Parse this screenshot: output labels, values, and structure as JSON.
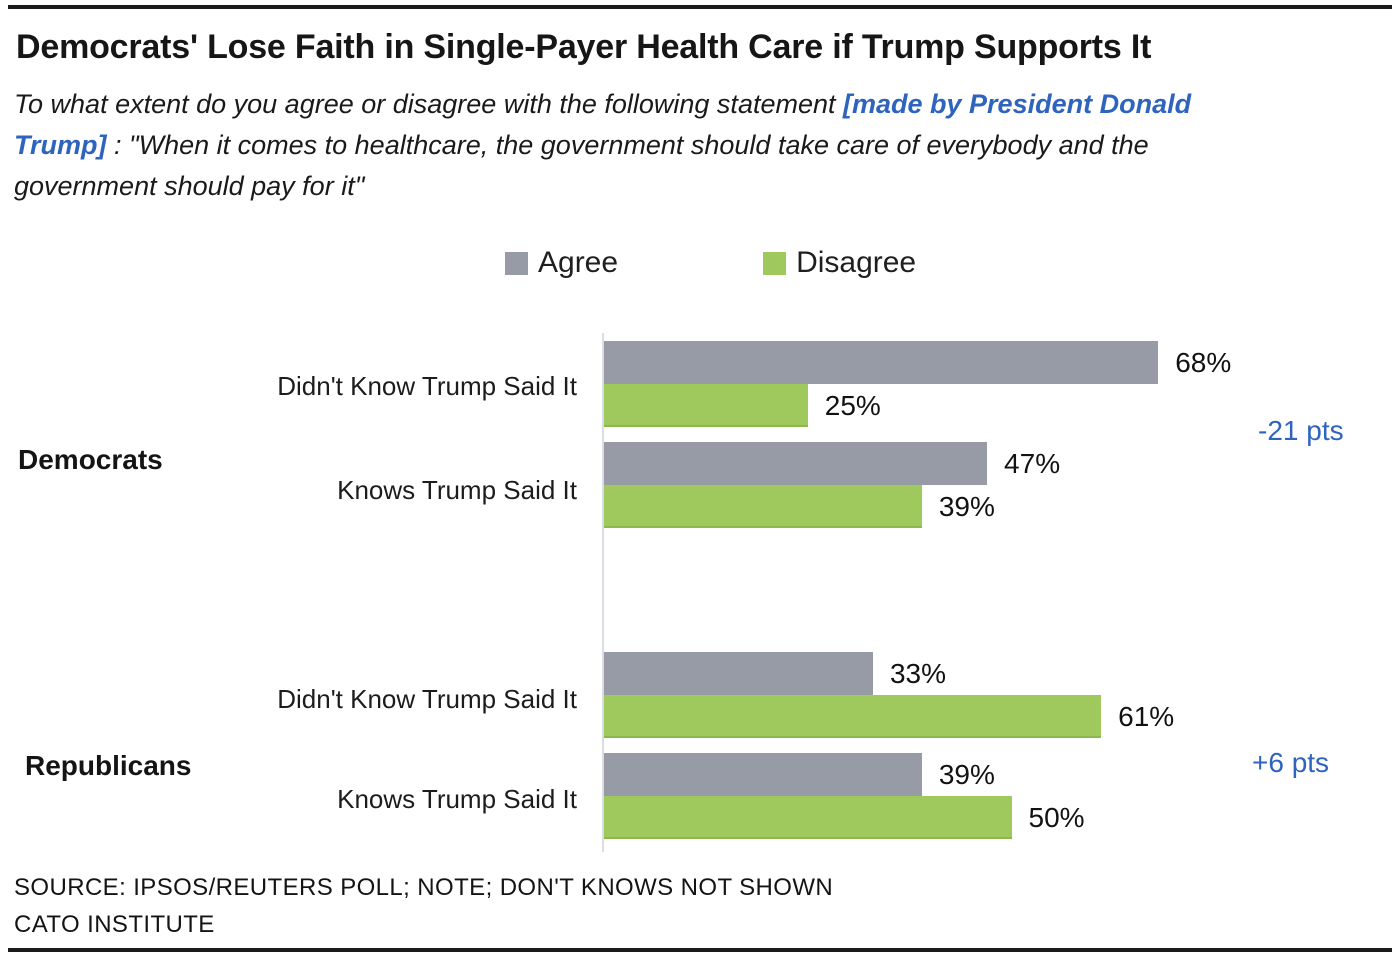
{
  "colors": {
    "agree": "#969BA6",
    "disagree": "#9FC95C",
    "disagree_border": "#8DB84E",
    "accent_blue": "#2E63BE",
    "axis": "#DADDE3",
    "rule": "#1B1B1B"
  },
  "chart_data": {
    "type": "bar",
    "orientation": "horizontal",
    "title": "Democrats' Lose Faith in Single-Payer Health Care if Trump Supports It",
    "subtitle": {
      "line1_black": "To what extent do you agree or disagree with the following statement ",
      "line1_blue": "[made by President Donald",
      "line2_blue": "Trump]",
      "line2_black": " : \"When it comes to healthcare, the government should take care of everybody and the",
      "line3_black": "government should pay for it\""
    },
    "value_suffix": "%",
    "xlim": [
      0,
      100
    ],
    "grid": false,
    "legend_position": "top-center",
    "legend": [
      {
        "label": "Agree",
        "color": "#969BA6"
      },
      {
        "label": "Disagree",
        "color": "#9FC95C"
      }
    ],
    "groups": [
      {
        "name": "Democrats",
        "diff": "-21 pts",
        "rows": [
          {
            "label": "Didn't Know Trump Said It",
            "agree": 68,
            "agree_label": "68%",
            "disagree": 25,
            "disagree_label": "25%"
          },
          {
            "label": "Knows Trump Said It",
            "agree": 47,
            "agree_label": "47%",
            "disagree": 39,
            "disagree_label": "39%"
          }
        ]
      },
      {
        "name": "Republicans",
        "diff": "+6 pts",
        "rows": [
          {
            "label": "Didn't Know Trump Said It",
            "agree": 33,
            "agree_label": "33%",
            "disagree": 61,
            "disagree_label": "61%"
          },
          {
            "label": "Knows Trump Said It",
            "agree": 39,
            "agree_label": "39%",
            "disagree": 50,
            "disagree_label": "50%"
          }
        ]
      }
    ],
    "source": "SOURCE: IPSOS/REUTERS POLL; NOTE; DON'T KNOWS NOT SHOWN",
    "credit": "CATO INSTITUTE"
  }
}
